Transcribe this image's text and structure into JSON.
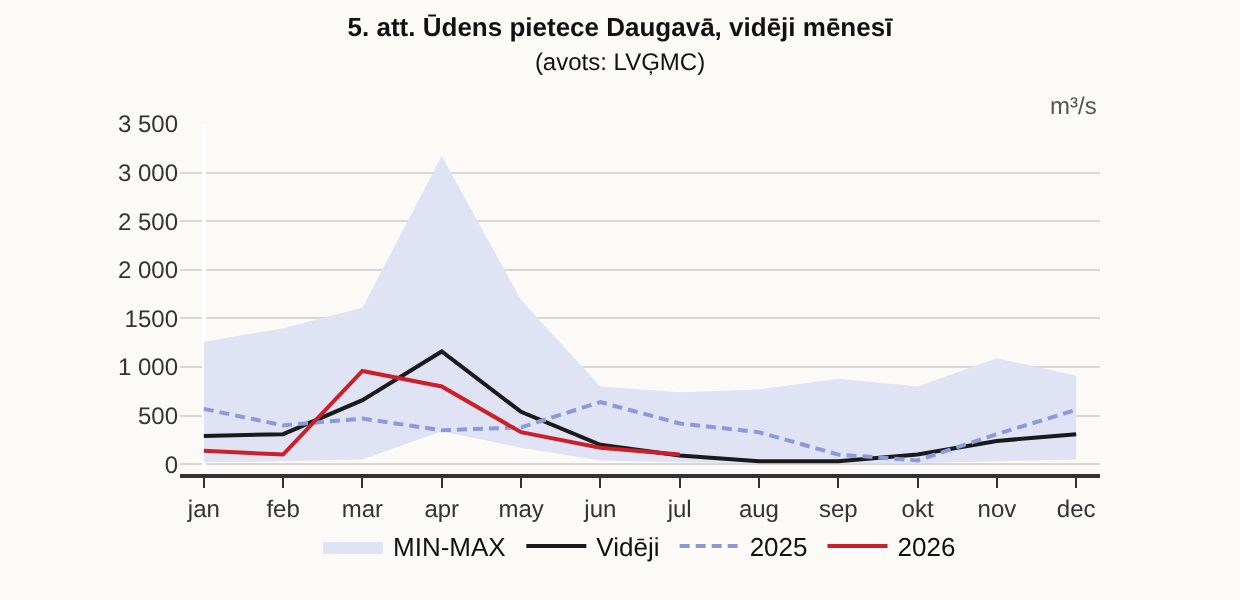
{
  "chart_data": {
    "type": "line",
    "title": "5. att. Ūdens pietece Daugavā, vidēji mēnesī",
    "subtitle": "(avots: LVĢMC)",
    "ylabel": "m³/s",
    "categories": [
      "jan",
      "feb",
      "mar",
      "apr",
      "may",
      "jun",
      "jul",
      "aug",
      "sep",
      "okt",
      "nov",
      "dec"
    ],
    "ylim": [
      -100,
      3500
    ],
    "yticks": [
      {
        "value": 0,
        "label": "0"
      },
      {
        "value": 500,
        "label": "500"
      },
      {
        "value": 1000,
        "label": "1 000"
      },
      {
        "value": 1500,
        "label": "1500"
      },
      {
        "value": 2000,
        "label": "2 000"
      },
      {
        "value": 2500,
        "label": "2 500"
      },
      {
        "value": 3000,
        "label": "3 000"
      },
      {
        "value": 3500,
        "label": "3 500"
      }
    ],
    "grid": "y",
    "legend": "bottom",
    "marker": "none",
    "series": [
      {
        "name": "MIN-MAX",
        "type": "area",
        "color": "#dfe3f3",
        "values": [
          null,
          null,
          null,
          null,
          null,
          null,
          null,
          null,
          null,
          null,
          null,
          null
        ],
        "lower": [
          20,
          30,
          50,
          340,
          170,
          40,
          20,
          10,
          10,
          10,
          30,
          50
        ],
        "upper": [
          1260,
          1400,
          1610,
          3170,
          1690,
          800,
          740,
          770,
          880,
          800,
          1090,
          910
        ]
      },
      {
        "name": "Vidēji",
        "color": "#1a1a1a",
        "line_style": "solid",
        "values": [
          290,
          310,
          660,
          1160,
          540,
          200,
          90,
          30,
          30,
          100,
          240,
          310
        ]
      },
      {
        "name": "2025",
        "color": "#8a9bd8",
        "line_style": "dashed",
        "values": [
          570,
          400,
          470,
          350,
          380,
          640,
          420,
          330,
          100,
          40,
          310,
          560
        ]
      },
      {
        "name": "2026",
        "color": "#cc1f2a",
        "line_style": "solid",
        "values": [
          140,
          100,
          960,
          800,
          330,
          170,
          100,
          null,
          null,
          null,
          null,
          null
        ]
      }
    ]
  }
}
